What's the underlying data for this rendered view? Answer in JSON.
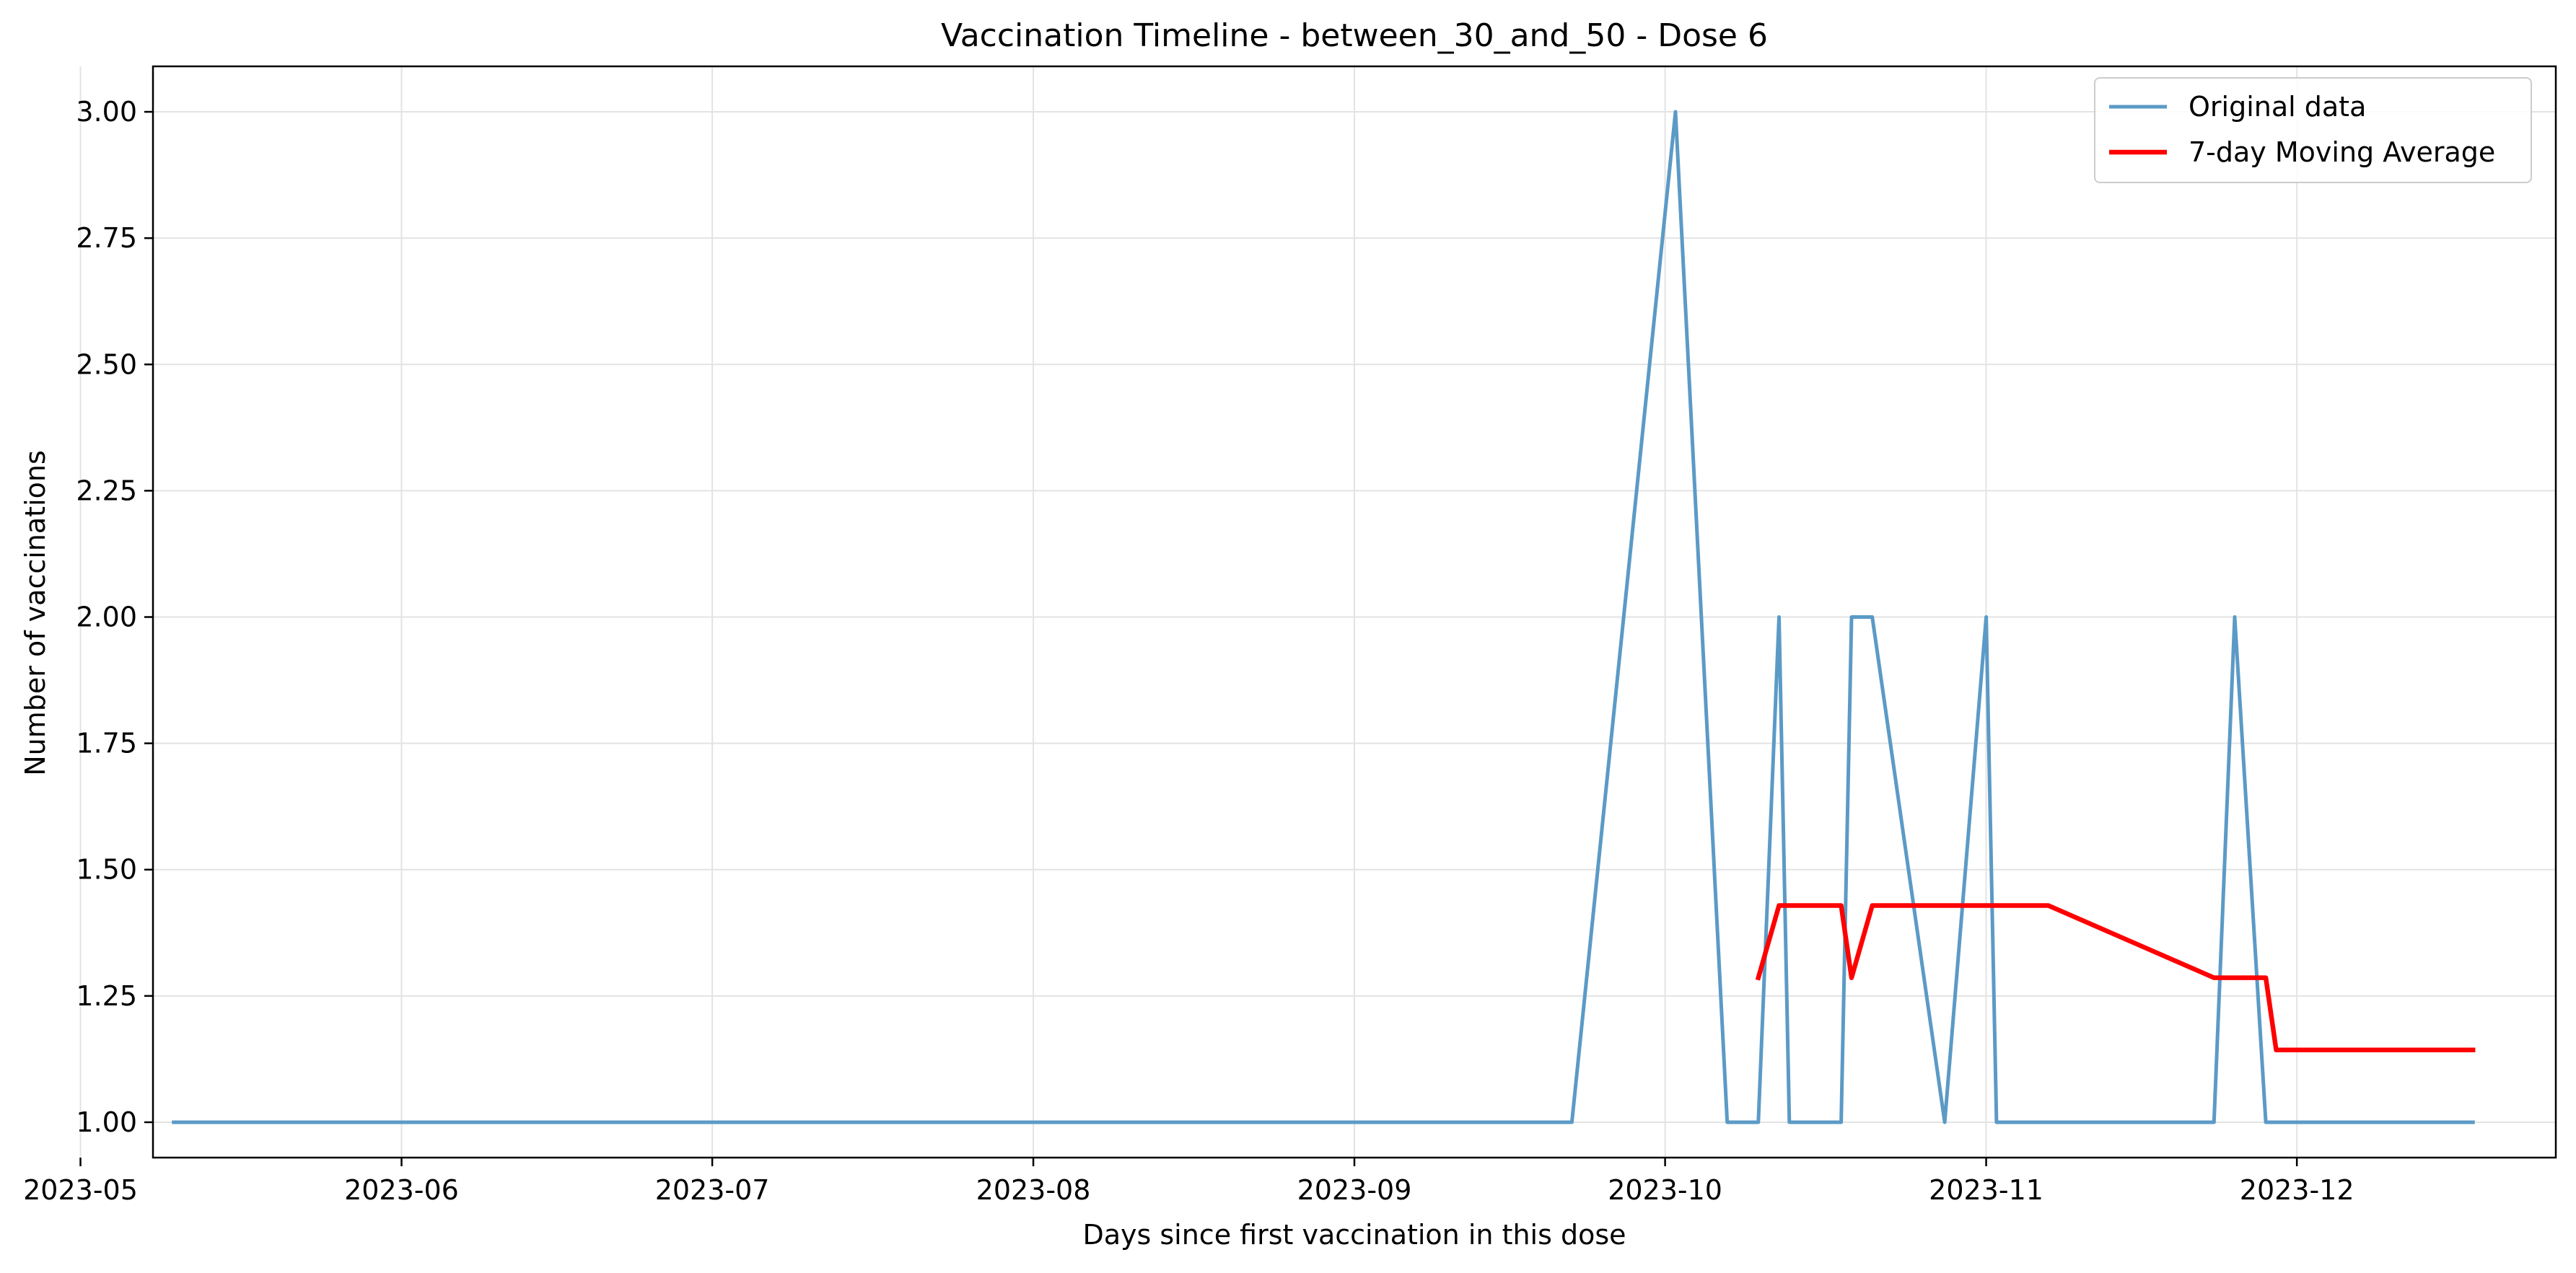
{
  "chart_data": {
    "type": "line",
    "title": "Vaccination Timeline - between_30_and_50 - Dose 6",
    "xlabel": "Days since first vaccination in this dose",
    "ylabel": "Number of vaccinations",
    "x_axis_type": "date",
    "xlim": [
      "2023-05-08",
      "2023-12-26"
    ],
    "ylim": [
      0.93,
      3.09
    ],
    "x_ticks": [
      "2023-05",
      "2023-06",
      "2023-07",
      "2023-08",
      "2023-09",
      "2023-10",
      "2023-11",
      "2023-12"
    ],
    "y_ticks": [
      "1.00",
      "1.25",
      "1.50",
      "1.75",
      "2.00",
      "2.25",
      "2.50",
      "2.75",
      "3.00"
    ],
    "grid": true,
    "legend_position": "top-right",
    "series": [
      {
        "name": "Original data",
        "color": "#5b9ac6",
        "x": [
          "2023-05-10",
          "2023-09-22",
          "2023-10-02",
          "2023-10-07",
          "2023-10-10",
          "2023-10-12",
          "2023-10-13",
          "2023-10-18",
          "2023-10-19",
          "2023-10-21",
          "2023-10-28",
          "2023-11-01",
          "2023-11-02",
          "2023-11-23",
          "2023-11-25",
          "2023-11-28",
          "2023-12-18"
        ],
        "y": [
          1,
          1,
          3,
          1,
          1,
          2,
          1,
          1,
          2,
          2,
          1,
          2,
          1,
          1,
          2,
          1,
          1
        ]
      },
      {
        "name": "7-day Moving Average",
        "color": "#ff0000",
        "x": [
          "2023-10-10",
          "2023-10-12",
          "2023-10-18",
          "2023-10-19",
          "2023-10-21",
          "2023-11-07",
          "2023-11-23",
          "2023-11-28",
          "2023-11-29",
          "2023-12-18"
        ],
        "y": [
          1.286,
          1.429,
          1.429,
          1.286,
          1.429,
          1.429,
          1.286,
          1.286,
          1.143,
          1.143
        ]
      }
    ]
  }
}
